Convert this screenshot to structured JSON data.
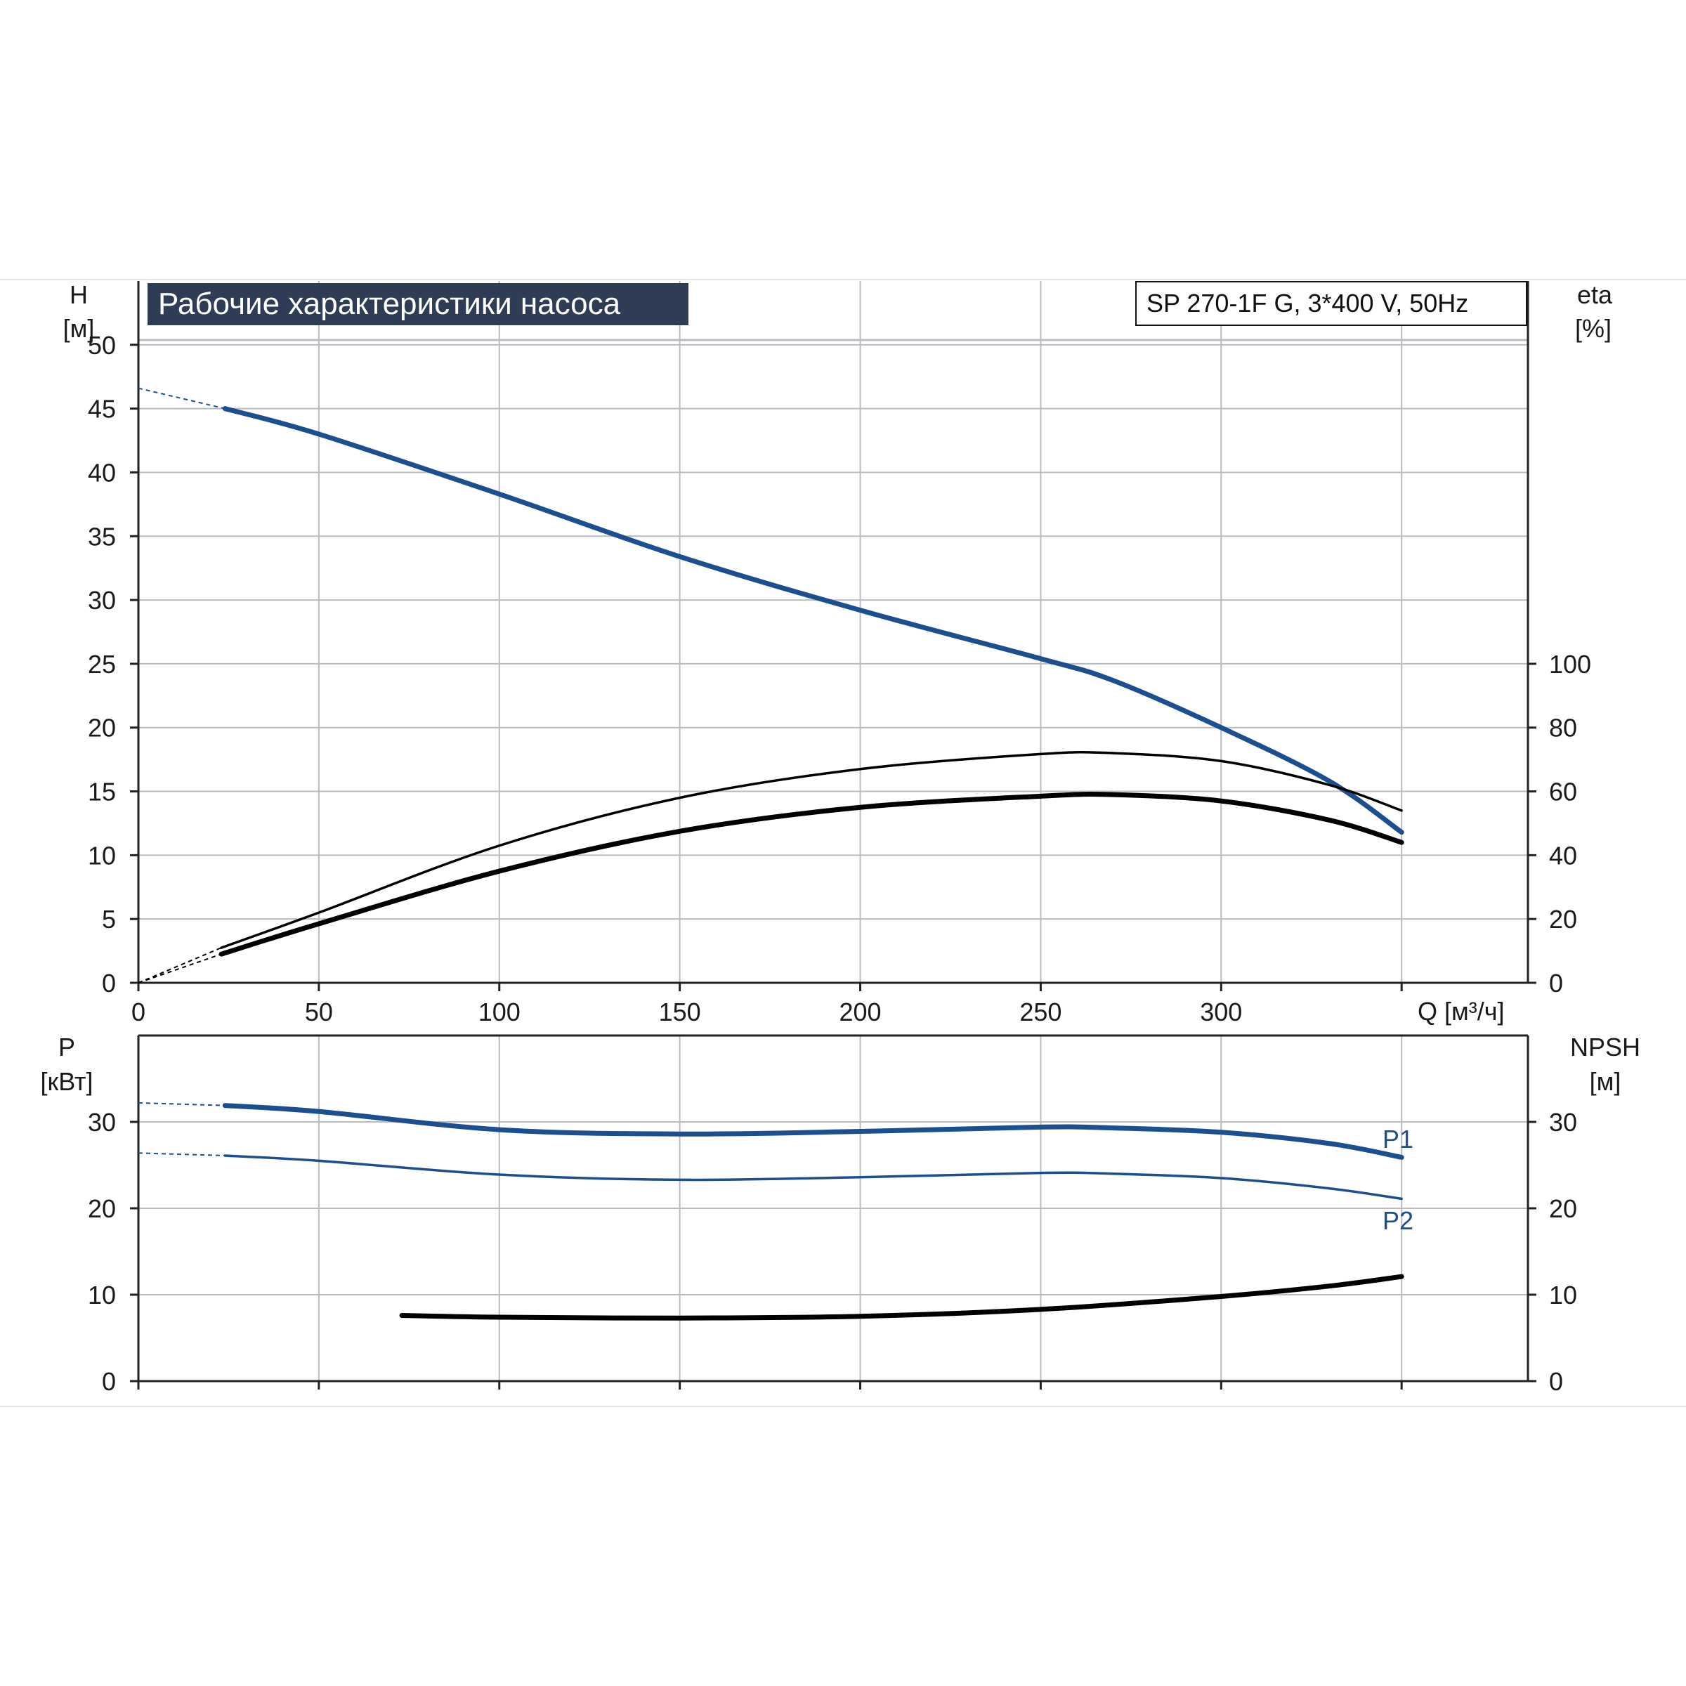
{
  "title": "Рабочие характеристики насоса",
  "model": "SP 270-1F G, 3*400 V, 50Hz",
  "colors": {
    "blue": "#1b4f8f",
    "black": "#000000",
    "grid": "#b8bcc2",
    "title_bg": "#2e3d55"
  },
  "chart_data": [
    {
      "type": "line",
      "x": {
        "label": "Q [м³/ч]",
        "range": [
          0,
          385
        ],
        "ticks": [
          0,
          50,
          100,
          150,
          200,
          250,
          300
        ]
      },
      "y_left": {
        "label_top": "H",
        "label_unit": "[м]",
        "range": [
          0,
          55
        ],
        "ticks": [
          0,
          5,
          10,
          15,
          20,
          25,
          30,
          35,
          40,
          45,
          50
        ]
      },
      "y_right": {
        "label_top": "eta",
        "label_unit": "[%]",
        "range": [
          0,
          220
        ],
        "ticks": [
          0,
          20,
          40,
          60,
          80,
          100
        ]
      },
      "grid": true,
      "series": [
        {
          "axis": "left",
          "color": "blue",
          "style": "thick",
          "points": [
            [
              24,
              45
            ],
            [
              50,
              43
            ],
            [
              100,
              38.3
            ],
            [
              150,
              33.4
            ],
            [
              200,
              29.2
            ],
            [
              250,
              25.4
            ],
            [
              270,
              23.7
            ],
            [
              300,
              20
            ],
            [
              330,
              15.8
            ],
            [
              350,
              11.8
            ]
          ],
          "extrapolated": [
            [
              0,
              46.6
            ],
            [
              24,
              45
            ]
          ]
        },
        {
          "axis": "right",
          "color": "black",
          "style": "thin",
          "points": [
            [
              23,
              11
            ],
            [
              50,
              22
            ],
            [
              100,
              43
            ],
            [
              150,
              58
            ],
            [
              200,
              67
            ],
            [
              250,
              71.7
            ],
            [
              270,
              72
            ],
            [
              300,
              69.5
            ],
            [
              330,
              62
            ],
            [
              350,
              54
            ]
          ],
          "extrapolated": [
            [
              0,
              0
            ],
            [
              23,
              11
            ]
          ]
        },
        {
          "axis": "right",
          "color": "black",
          "style": "thick",
          "points": [
            [
              23,
              9
            ],
            [
              50,
              18.5
            ],
            [
              100,
              35
            ],
            [
              150,
              47.5
            ],
            [
              200,
              55
            ],
            [
              250,
              58.5
            ],
            [
              270,
              59
            ],
            [
              300,
              57
            ],
            [
              330,
              51
            ],
            [
              350,
              44
            ]
          ],
          "extrapolated": [
            [
              0,
              0
            ],
            [
              23,
              9
            ]
          ]
        }
      ]
    },
    {
      "type": "line",
      "x": {
        "range": [
          0,
          385
        ],
        "ticks": []
      },
      "y_left": {
        "label_top": "P",
        "label_unit": "[кВт]",
        "range": [
          0,
          40
        ],
        "ticks": [
          0,
          10,
          20,
          30
        ]
      },
      "y_right": {
        "label_top": "NPSH",
        "label_unit": "[м]",
        "range": [
          0,
          40
        ],
        "ticks": [
          0,
          10,
          20,
          30
        ]
      },
      "grid": true,
      "series": [
        {
          "name": "P1",
          "axis": "left",
          "color": "blue",
          "style": "thick",
          "points": [
            [
              24,
              31.9
            ],
            [
              50,
              31.2
            ],
            [
              100,
              29.1
            ],
            [
              150,
              28.6
            ],
            [
              200,
              28.9
            ],
            [
              250,
              29.4
            ],
            [
              270,
              29.3
            ],
            [
              300,
              28.8
            ],
            [
              330,
              27.5
            ],
            [
              350,
              25.9
            ]
          ],
          "extrapolated": [
            [
              0,
              32.2
            ],
            [
              24,
              31.9
            ]
          ]
        },
        {
          "name": "P2",
          "axis": "left",
          "color": "blue",
          "style": "thin",
          "points": [
            [
              24,
              26.1
            ],
            [
              50,
              25.5
            ],
            [
              100,
              23.9
            ],
            [
              150,
              23.3
            ],
            [
              200,
              23.6
            ],
            [
              250,
              24.1
            ],
            [
              270,
              24
            ],
            [
              300,
              23.5
            ],
            [
              330,
              22.3
            ],
            [
              350,
              21.1
            ]
          ],
          "extrapolated": [
            [
              0,
              26.4
            ],
            [
              24,
              26.1
            ]
          ]
        },
        {
          "axis": "right",
          "color": "black",
          "style": "thick",
          "points": [
            [
              73,
              7.6
            ],
            [
              100,
              7.4
            ],
            [
              150,
              7.3
            ],
            [
              200,
              7.5
            ],
            [
              250,
              8.3
            ],
            [
              300,
              9.8
            ],
            [
              330,
              11
            ],
            [
              350,
              12.1
            ]
          ]
        }
      ]
    }
  ]
}
